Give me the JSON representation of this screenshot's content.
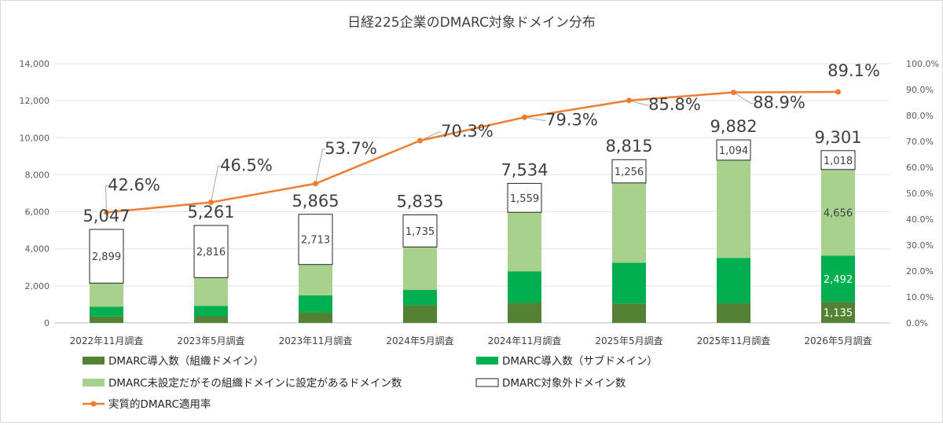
{
  "chart_data": {
    "type": "bar",
    "title": "日経225企業のDMARC対象ドメイン分布",
    "categories": [
      "2022年11月調査",
      "2023年5月調査",
      "2023年11月調査",
      "2024年5月調査",
      "2024年11月調査",
      "2025年5月調査",
      "2025年11月調査",
      "2026年5月調査"
    ],
    "y_left": {
      "min": 0,
      "max": 14000,
      "ticks": [
        "0",
        "2,000",
        "4,000",
        "6,000",
        "8,000",
        "10,000",
        "12,000",
        "14,000"
      ]
    },
    "y_right": {
      "min": 0,
      "max": 100,
      "ticks": [
        "0.0%",
        "10.0%",
        "20.0%",
        "30.0%",
        "40.0%",
        "50.0%",
        "60.0%",
        "70.0%",
        "80.0%",
        "90.0%",
        "100.0%"
      ]
    },
    "series": [
      {
        "name": "DMARC導入数（組織ドメイン）",
        "color": "#548235",
        "values": [
          350,
          360,
          550,
          950,
          1080,
          1050,
          1060,
          1135
        ],
        "labels": [
          "",
          "",
          "",
          "",
          "",
          "",
          "",
          "1,135"
        ]
      },
      {
        "name": "DMARC導入数（サブドメイン）",
        "color": "#00b050",
        "values": [
          520,
          560,
          940,
          830,
          1700,
          2200,
          2450,
          2492
        ],
        "labels": [
          "",
          "",
          "",
          "",
          "",
          "",
          "",
          "2,492"
        ]
      },
      {
        "name": "DMARC未設定だがその組織ドメインに設定があるドメイン数",
        "color": "#a9d18e",
        "values": [
          1278,
          1525,
          1662,
          2320,
          3195,
          4309,
          5278,
          4656
        ],
        "labels": [
          "",
          "",
          "",
          "",
          "",
          "",
          "",
          "4,656"
        ]
      },
      {
        "name": "DMARC対象外ドメイン数",
        "color": "#ffffff",
        "values": [
          2899,
          2816,
          2713,
          1735,
          1559,
          1256,
          1094,
          1018
        ],
        "labels": [
          "2,899",
          "2,816",
          "2,713",
          "1,735",
          "1,559",
          "1,256",
          "1,094",
          "1,018"
        ]
      }
    ],
    "totals": [
      "5,047",
      "5,261",
      "5,865",
      "5,835",
      "7,534",
      "8,815",
      "9,882",
      "9,301"
    ],
    "line": {
      "name": "実質的DMARC適用率",
      "color": "#ed7d31",
      "values": [
        42.6,
        46.5,
        53.7,
        70.3,
        79.3,
        85.8,
        88.9,
        89.1
      ],
      "labels": [
        "42.6%",
        "46.5%",
        "53.7%",
        "70.3%",
        "79.3%",
        "85.8%",
        "88.9%",
        "89.1%"
      ]
    },
    "legend_position": "bottom"
  }
}
